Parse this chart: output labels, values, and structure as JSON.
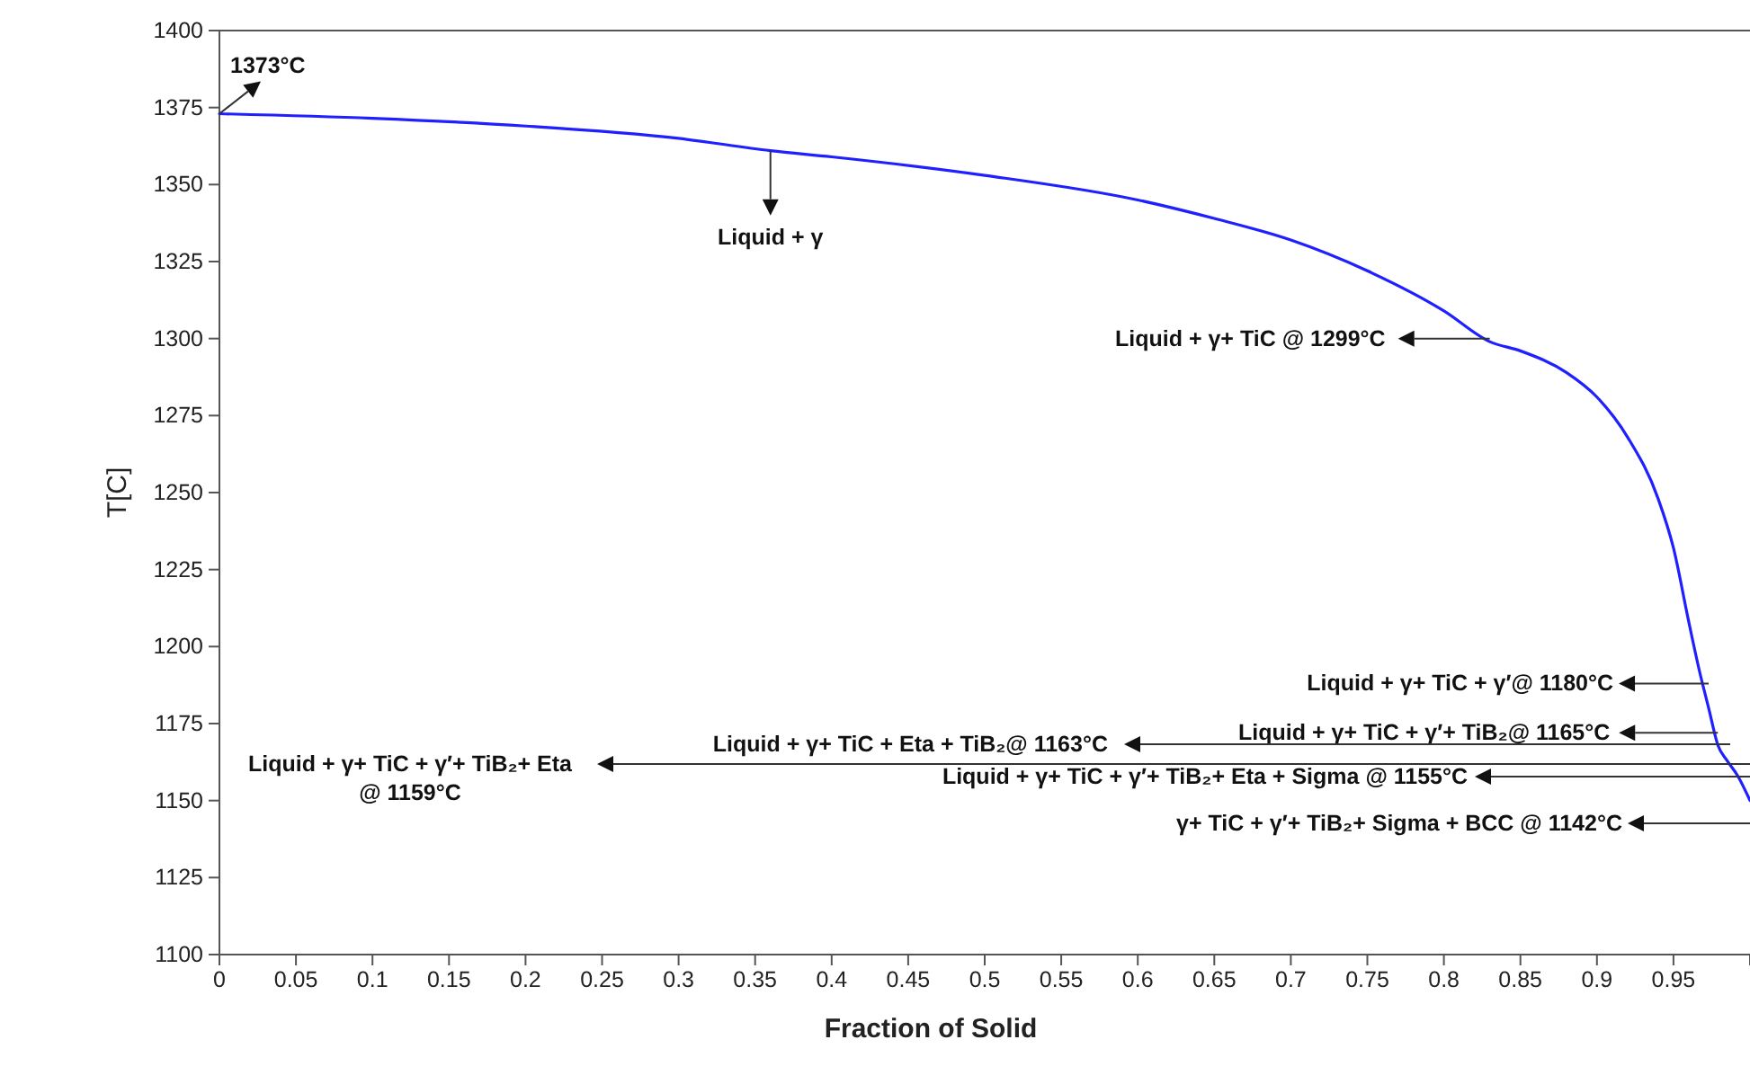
{
  "chart_data": {
    "type": "line",
    "xlabel": "Fraction of Solid",
    "ylabel": "T[C]",
    "x": [
      0,
      0.1,
      0.2,
      0.3,
      0.36,
      0.4,
      0.5,
      0.6,
      0.65,
      0.7,
      0.75,
      0.8,
      0.83,
      0.85,
      0.88,
      0.9,
      0.92,
      0.94,
      0.95,
      0.96,
      0.967,
      0.973,
      0.979,
      0.985,
      0.992,
      1.0
    ],
    "series": [
      {
        "color": "#1f1fff",
        "values": [
          1373,
          1371.5,
          1369,
          1365,
          1361,
          1359,
          1353,
          1345,
          1339,
          1332,
          1322,
          1309,
          1299,
          1296,
          1289,
          1281,
          1268,
          1248,
          1232,
          1208,
          1192,
          1180,
          1168,
          1163,
          1158,
          1150
        ]
      }
    ],
    "xlim": [
      0,
      1
    ],
    "ylim": [
      1100,
      1400
    ],
    "xticks": [
      0,
      0.05,
      0.1,
      0.15,
      0.2,
      0.25,
      0.3,
      0.35,
      0.4,
      0.45,
      0.5,
      0.55,
      0.6,
      0.65,
      0.7,
      0.75,
      0.8,
      0.85,
      0.9,
      0.95
    ],
    "yticks": [
      1100,
      1125,
      1150,
      1175,
      1200,
      1225,
      1250,
      1275,
      1300,
      1325,
      1350,
      1375,
      1400
    ],
    "grid": false,
    "marker": "none",
    "line_style": "solid",
    "annotations": [
      {
        "text": "1373°C",
        "x": 0,
        "y": 1373
      },
      {
        "text": "Liquid + γ",
        "x": 0.36,
        "y": 1361
      },
      {
        "text": "Liquid + γ+ TiC @ 1299°C",
        "x": 0.83,
        "y": 1300
      },
      {
        "text": "Liquid + γ+ TiC + γ′@ 1180°C",
        "x": 0.973,
        "y": 1188
      },
      {
        "text": "Liquid + γ+ TiC + γ′+ TiB₂@ 1165°C",
        "x": 0.979,
        "y": 1172
      },
      "Liquid + γ+ TiC + Eta + TiB₂@ 1163°C",
      "Liquid + γ+ TiC + γ′+ TiB₂+ Eta\n@ 1159°C",
      "Liquid + γ+ TiC + γ′+ TiB₂+ Eta + Sigma @ 1155°C",
      "γ+ TiC + γ′+ TiB₂+ Sigma + BCC @ 1142°C"
    ]
  }
}
